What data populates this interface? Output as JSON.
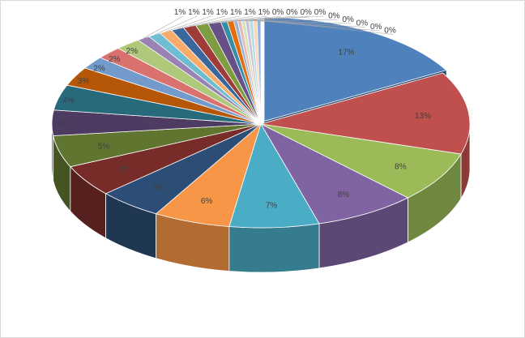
{
  "chart_data": {
    "type": "pie",
    "style": "3d-exploded-first",
    "title": "",
    "legend": "none",
    "slices": [
      {
        "value": 17,
        "label": "17%",
        "color": "#4F81BD"
      },
      {
        "value": 13,
        "label": "13%",
        "color": "#C0504D"
      },
      {
        "value": 8,
        "label": "8%",
        "color": "#9BBB59"
      },
      {
        "value": 8,
        "label": "8%",
        "color": "#8064A2"
      },
      {
        "value": 7,
        "label": "7%",
        "color": "#4BACC6"
      },
      {
        "value": 6,
        "label": "6%",
        "color": "#F79646"
      },
      {
        "value": 5,
        "label": "5%",
        "color": "#2C4D75"
      },
      {
        "value": 5,
        "label": "5%",
        "color": "#772C2A"
      },
      {
        "value": 5,
        "label": "5%",
        "color": "#5F7530"
      },
      {
        "value": 4,
        "label": "4%",
        "color": "#4D3B62"
      },
      {
        "value": 4,
        "label": "4%",
        "color": "#276A7C"
      },
      {
        "value": 3,
        "label": "3%",
        "color": "#B65708"
      },
      {
        "value": 2,
        "label": "2%",
        "color": "#729ACA"
      },
      {
        "value": 2,
        "label": "2%",
        "color": "#D9716F"
      },
      {
        "value": 2,
        "label": "2%",
        "color": "#AFC97A"
      },
      {
        "value": 1,
        "label": "1%",
        "color": "#9983B5"
      },
      {
        "value": 1,
        "label": "1%",
        "color": "#6FBDD1"
      },
      {
        "value": 1,
        "label": "1%",
        "color": "#F9AB6B"
      },
      {
        "value": 1,
        "label": "1%",
        "color": "#3A679C"
      },
      {
        "value": 1,
        "label": "1%",
        "color": "#9F3B38"
      },
      {
        "value": 1,
        "label": "1%",
        "color": "#7E9C40"
      },
      {
        "value": 1,
        "label": "1%",
        "color": "#674F87"
      },
      {
        "value": 0.5,
        "label": "0%",
        "color": "#358EA6"
      },
      {
        "value": 0.5,
        "label": "0%",
        "color": "#E46C0A"
      },
      {
        "value": 0.3,
        "label": "0%",
        "color": "#95B3D7"
      },
      {
        "value": 0.3,
        "label": "0%",
        "color": "#E6B9B8"
      },
      {
        "value": 0.3,
        "label": "0%",
        "color": "#D7E4BD"
      },
      {
        "value": 0.3,
        "label": "0%",
        "color": "#CCC1DA"
      },
      {
        "value": 0.3,
        "label": "0%",
        "color": "#B7DEE8"
      },
      {
        "value": 0.3,
        "label": "0%",
        "color": "#FCD5B5"
      },
      {
        "value": 0.3,
        "label": "0%",
        "color": "#8EB4E3"
      }
    ]
  }
}
